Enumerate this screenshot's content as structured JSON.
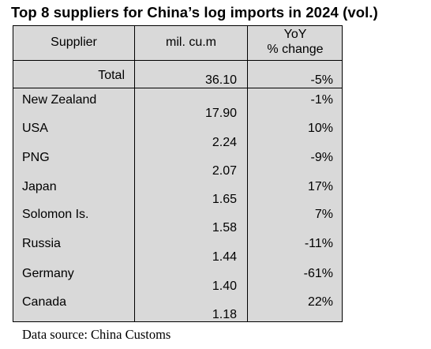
{
  "title": "Top 8 suppliers for China’s log imports in 2024 (vol.)",
  "table": {
    "headers": {
      "supplier": "Supplier",
      "volume": "mil. cu.m",
      "yoy_line1": "YoY",
      "yoy_line2": "% change"
    },
    "total": {
      "label": "Total",
      "volume": "36.10",
      "yoy": "-5%"
    },
    "rows": [
      {
        "supplier": "New Zealand",
        "volume": "17.90",
        "yoy": "-1%"
      },
      {
        "supplier": "USA",
        "volume": "2.24",
        "yoy": "10%"
      },
      {
        "supplier": "PNG",
        "volume": "2.07",
        "yoy": "-9%"
      },
      {
        "supplier": "Japan",
        "volume": "1.65",
        "yoy": "17%"
      },
      {
        "supplier": "Solomon Is.",
        "volume": "1.58",
        "yoy": "7%"
      },
      {
        "supplier": "Russia",
        "volume": "1.44",
        "yoy": "-11%"
      },
      {
        "supplier": "Germany",
        "volume": "1.40",
        "yoy": "-61%"
      },
      {
        "supplier": "Canada",
        "volume": "1.18",
        "yoy": "22%"
      }
    ]
  },
  "source": "Data source: China Customs"
}
